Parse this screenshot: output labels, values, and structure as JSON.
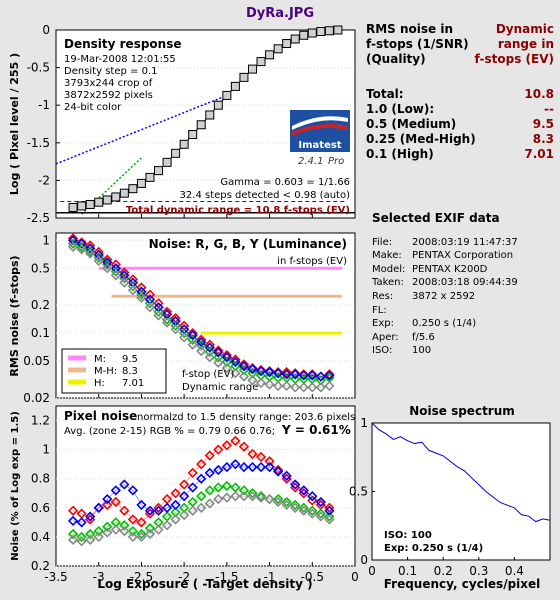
{
  "window_title": "DyRa.JPG",
  "results": {
    "col1_header": [
      "RMS noise in",
      "f-stops (1/SNR)",
      "(Quality)"
    ],
    "col2_header": [
      "Dynamic",
      "range in",
      "f-stops (EV)"
    ],
    "rows": [
      {
        "label": "Total:",
        "value": "10.8"
      },
      {
        "label": "1.0   (Low):",
        "value": "--"
      },
      {
        "label": "0.5   (Medium)",
        "value": "9.5"
      },
      {
        "label": "0.25 (Med-High)",
        "value": "8.3"
      },
      {
        "label": "0.1   (High)",
        "value": "7.01"
      }
    ]
  },
  "exif": {
    "title": "Selected EXIF data",
    "lines": [
      {
        "k": "File:",
        "v": "2008:03:19 11:47:37"
      },
      {
        "k": "Make:",
        "v": "PENTAX Corporation"
      },
      {
        "k": "Model:",
        "v": "PENTAX K200D"
      },
      {
        "k": "Taken:",
        "v": "2008:03:18 09:44:39"
      },
      {
        "k": "Res:",
        "v": "3872 x 2592"
      },
      {
        "k": "FL:",
        "v": ""
      },
      {
        "k": "Exp:",
        "v": "0.250 s  (1/4)"
      },
      {
        "k": "Aper:",
        "v": "f/5.6"
      },
      {
        "k": "ISO:",
        "v": "100"
      }
    ]
  },
  "logo": {
    "name": "Imatest",
    "version": "2.4.1",
    "edition": "Pro"
  },
  "chart_data": [
    {
      "type": "line",
      "panel": "density",
      "title": "Density response",
      "info": [
        "19-Mar-2008 12:01:55",
        "Density step = 0.1",
        "3793x244 crop of",
        "3872x2592 pixels",
        "24-bit color"
      ],
      "gamma": "Gamma = 0.603 = 1/1.66",
      "steps": "32.4 steps detected < 0.98 (auto)",
      "total": "Total dynamic range = 10.8 f-stops (EV)",
      "ylabel": "Log ( Pixel level / 255 )",
      "xlim": [
        -3.5,
        0
      ],
      "ylim": [
        -2.5,
        0
      ],
      "yticks": [
        "0",
        "-0.5",
        "-1",
        "-1.5",
        "-2",
        "-2.5"
      ],
      "x": [
        -3.3,
        -3.2,
        -3.1,
        -3.0,
        -2.9,
        -2.8,
        -2.7,
        -2.6,
        -2.5,
        -2.4,
        -2.3,
        -2.2,
        -2.1,
        -2.0,
        -1.9,
        -1.8,
        -1.7,
        -1.6,
        -1.5,
        -1.4,
        -1.3,
        -1.2,
        -1.1,
        -1.0,
        -0.9,
        -0.8,
        -0.7,
        -0.6,
        -0.5,
        -0.4,
        -0.3,
        -0.2
      ],
      "y": [
        -2.36,
        -2.34,
        -2.32,
        -2.29,
        -2.26,
        -2.22,
        -2.17,
        -2.11,
        -2.04,
        -1.96,
        -1.87,
        -1.76,
        -1.64,
        -1.52,
        -1.39,
        -1.26,
        -1.13,
        -1.0,
        -0.87,
        -0.75,
        -0.63,
        -0.52,
        -0.42,
        -0.33,
        -0.25,
        -0.18,
        -0.12,
        -0.07,
        -0.04,
        -0.02,
        -0.01,
        0.0
      ]
    },
    {
      "type": "scatter",
      "panel": "noise",
      "title": "Noise: R, G, B, Y (Luminance)",
      "subtitle": "in f-stops (EV)",
      "ylabel": "RMS noise (f-stops)",
      "ylim": [
        0.02,
        1.2
      ],
      "yticks": [
        "1",
        "0.5",
        "0.2",
        "0.1",
        "0.05",
        "0.02"
      ],
      "legend": [
        {
          "label": "M:",
          "value": "9.5",
          "color": "#ff88ff"
        },
        {
          "label": "M-H:",
          "value": "8.3",
          "color": "#f0b890"
        },
        {
          "label": "H:",
          "value": "7.01",
          "color": "#f0f000"
        }
      ],
      "legend_note": [
        "f-stop (EV)",
        "Dynamic range"
      ],
      "thresholds": [
        {
          "level": 0.5,
          "from": -3.0
        },
        {
          "level": 0.25,
          "from": -2.85
        },
        {
          "level": 0.1,
          "from": -1.8
        }
      ],
      "x": [
        -3.3,
        -3.2,
        -3.1,
        -3.0,
        -2.9,
        -2.8,
        -2.7,
        -2.6,
        -2.5,
        -2.4,
        -2.3,
        -2.2,
        -2.1,
        -2.0,
        -1.9,
        -1.8,
        -1.7,
        -1.6,
        -1.5,
        -1.4,
        -1.3,
        -1.2,
        -1.1,
        -1.0,
        -0.9,
        -0.8,
        -0.7,
        -0.6,
        -0.5,
        -0.4,
        -0.3
      ],
      "series": [
        {
          "name": "R",
          "color": "#ff0000",
          "values": [
            1.05,
            0.95,
            0.88,
            0.75,
            0.62,
            0.55,
            0.45,
            0.38,
            0.31,
            0.26,
            0.21,
            0.17,
            0.145,
            0.12,
            0.1,
            0.085,
            0.075,
            0.065,
            0.058,
            0.052,
            0.046,
            0.042,
            0.04,
            0.039,
            0.038,
            0.038,
            0.037,
            0.036,
            0.036,
            0.034,
            0.036
          ]
        },
        {
          "name": "G",
          "color": "#00c000",
          "values": [
            0.92,
            0.85,
            0.76,
            0.65,
            0.55,
            0.46,
            0.39,
            0.32,
            0.26,
            0.21,
            0.17,
            0.14,
            0.12,
            0.1,
            0.085,
            0.074,
            0.063,
            0.055,
            0.049,
            0.044,
            0.04,
            0.037,
            0.035,
            0.034,
            0.033,
            0.033,
            0.032,
            0.032,
            0.032,
            0.031,
            0.033
          ]
        },
        {
          "name": "B",
          "color": "#0000ff",
          "values": [
            1.0,
            0.92,
            0.82,
            0.7,
            0.58,
            0.5,
            0.42,
            0.35,
            0.28,
            0.23,
            0.19,
            0.16,
            0.135,
            0.11,
            0.095,
            0.08,
            0.07,
            0.062,
            0.055,
            0.049,
            0.044,
            0.041,
            0.039,
            0.038,
            0.037,
            0.036,
            0.036,
            0.035,
            0.035,
            0.034,
            0.035
          ]
        },
        {
          "name": "Y",
          "color": "#888888",
          "values": [
            0.85,
            0.8,
            0.72,
            0.6,
            0.5,
            0.42,
            0.35,
            0.29,
            0.24,
            0.19,
            0.155,
            0.13,
            0.11,
            0.09,
            0.075,
            0.064,
            0.055,
            0.048,
            0.042,
            0.037,
            0.034,
            0.031,
            0.029,
            0.028,
            0.027,
            0.027,
            0.026,
            0.026,
            0.026,
            0.026,
            0.027
          ]
        }
      ]
    },
    {
      "type": "scatter",
      "panel": "pixel_noise",
      "title": "Pixel noise",
      "note1": "normalzd to 1.5 density range: 203.6 pixels",
      "note2": "Avg. (zone 2-15) RGB % = 0.79  0.66  0.76;",
      "note3": "Y = 0.61%",
      "xlabel": "Log Exposure ( -Target density )",
      "ylabel": "Noise (% of Log exp = 1.5)",
      "xlim": [
        -3.5,
        0
      ],
      "ylim": [
        0.2,
        1.3
      ],
      "xticks": [
        "-3.5",
        "-3",
        "-2.5",
        "-2",
        "-1.5",
        "-1",
        "-0.5",
        "0"
      ],
      "yticks": [
        "1.2",
        "1",
        "0.8",
        "0.6",
        "0.4",
        "0.2"
      ],
      "x": [
        -3.3,
        -3.2,
        -3.1,
        -3.0,
        -2.9,
        -2.8,
        -2.7,
        -2.6,
        -2.5,
        -2.4,
        -2.3,
        -2.2,
        -2.1,
        -2.0,
        -1.9,
        -1.8,
        -1.7,
        -1.6,
        -1.5,
        -1.4,
        -1.3,
        -1.2,
        -1.1,
        -1.0,
        -0.9,
        -0.8,
        -0.7,
        -0.6,
        -0.5,
        -0.4,
        -0.3
      ],
      "series": [
        {
          "name": "R",
          "color": "#ff0000",
          "values": [
            0.58,
            0.56,
            0.52,
            0.6,
            0.62,
            0.64,
            0.58,
            0.52,
            0.5,
            0.56,
            0.6,
            0.66,
            0.7,
            0.76,
            0.84,
            0.9,
            0.96,
            1.0,
            1.03,
            1.06,
            1.02,
            0.97,
            0.95,
            0.92,
            0.86,
            0.8,
            0.74,
            0.7,
            0.65,
            0.62,
            0.6
          ]
        },
        {
          "name": "G",
          "color": "#00c000",
          "values": [
            0.42,
            0.4,
            0.42,
            0.44,
            0.47,
            0.5,
            0.48,
            0.44,
            0.42,
            0.46,
            0.5,
            0.54,
            0.57,
            0.6,
            0.64,
            0.68,
            0.72,
            0.74,
            0.75,
            0.74,
            0.72,
            0.7,
            0.68,
            0.66,
            0.66,
            0.64,
            0.62,
            0.6,
            0.58,
            0.56,
            0.54
          ]
        },
        {
          "name": "B",
          "color": "#0000ff",
          "values": [
            0.51,
            0.5,
            0.54,
            0.6,
            0.66,
            0.72,
            0.76,
            0.72,
            0.62,
            0.58,
            0.58,
            0.6,
            0.62,
            0.68,
            0.74,
            0.8,
            0.84,
            0.86,
            0.88,
            0.9,
            0.88,
            0.88,
            0.88,
            0.88,
            0.85,
            0.82,
            0.76,
            0.72,
            0.68,
            0.64,
            0.58
          ]
        },
        {
          "name": "Y",
          "color": "#888888",
          "values": [
            0.38,
            0.37,
            0.38,
            0.4,
            0.43,
            0.45,
            0.44,
            0.4,
            0.4,
            0.42,
            0.45,
            0.48,
            0.52,
            0.55,
            0.58,
            0.6,
            0.63,
            0.66,
            0.67,
            0.68,
            0.68,
            0.68,
            0.67,
            0.66,
            0.64,
            0.62,
            0.6,
            0.58,
            0.56,
            0.54,
            0.52
          ]
        }
      ]
    },
    {
      "type": "line",
      "panel": "spectrum",
      "title": "Noise spectrum",
      "xlabel": "Frequency, cycles/pixel",
      "xlim": [
        0,
        0.5
      ],
      "ylim": [
        0,
        1
      ],
      "xticks": [
        "0",
        "0.1",
        "0.2",
        "0.3",
        "0.4"
      ],
      "yticks": [
        "1",
        "0.5",
        "0"
      ],
      "iso": "ISO:   100",
      "exp": "Exp:   0.250 s   (1/4)",
      "x": [
        0.0,
        0.02,
        0.04,
        0.06,
        0.08,
        0.1,
        0.12,
        0.14,
        0.16,
        0.18,
        0.2,
        0.22,
        0.24,
        0.26,
        0.28,
        0.3,
        0.32,
        0.34,
        0.36,
        0.38,
        0.4,
        0.42,
        0.44,
        0.46,
        0.48,
        0.5
      ],
      "y": [
        1.0,
        0.95,
        0.92,
        0.88,
        0.9,
        0.87,
        0.85,
        0.86,
        0.8,
        0.78,
        0.76,
        0.72,
        0.68,
        0.65,
        0.6,
        0.55,
        0.5,
        0.46,
        0.42,
        0.4,
        0.38,
        0.33,
        0.32,
        0.28,
        0.3,
        0.29
      ]
    }
  ]
}
